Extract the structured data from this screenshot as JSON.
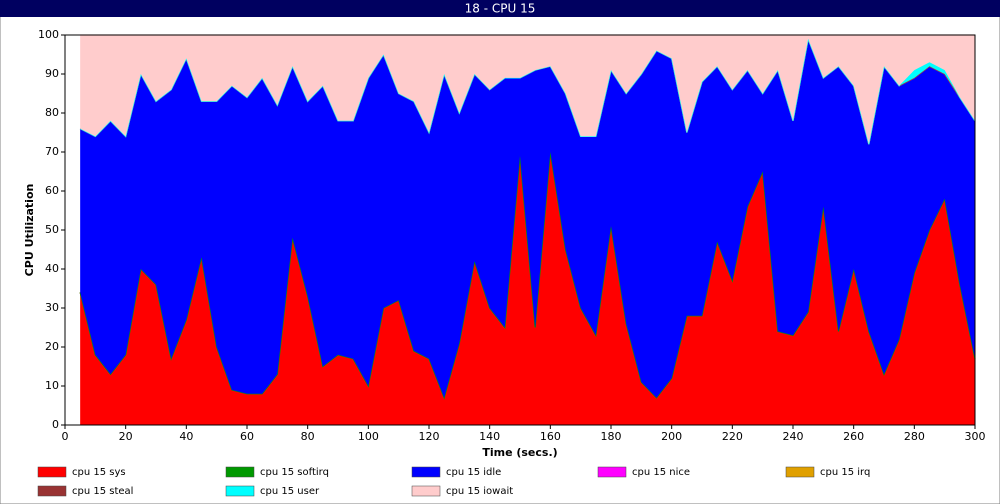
{
  "chart_data": {
    "type": "area",
    "stacked": true,
    "title": "18 - CPU 15",
    "x_label": "Time (secs.)",
    "y_label": "CPU Utilization",
    "xlim": [
      0,
      300
    ],
    "ylim": [
      0,
      100
    ],
    "xticks": [
      0,
      20,
      40,
      60,
      80,
      100,
      120,
      140,
      160,
      180,
      200,
      220,
      240,
      260,
      280,
      300
    ],
    "yticks": [
      0,
      10,
      20,
      30,
      40,
      50,
      60,
      70,
      80,
      90,
      100
    ],
    "x": [
      5,
      10,
      15,
      20,
      25,
      30,
      35,
      40,
      45,
      50,
      55,
      60,
      65,
      70,
      75,
      80,
      85,
      90,
      95,
      100,
      105,
      110,
      115,
      120,
      125,
      130,
      135,
      140,
      145,
      150,
      155,
      160,
      165,
      170,
      175,
      180,
      185,
      190,
      195,
      200,
      205,
      210,
      215,
      220,
      225,
      230,
      235,
      240,
      245,
      250,
      255,
      260,
      265,
      270,
      275,
      280,
      285,
      290,
      295,
      300
    ],
    "series": [
      {
        "name": "cpu 15 sys",
        "color": "#ff0000",
        "values": [
          34,
          18,
          13,
          18,
          40,
          36,
          17,
          27,
          43,
          20,
          9,
          8,
          8,
          13,
          48,
          33,
          15,
          18,
          17,
          10,
          30,
          32,
          19,
          17,
          7,
          21,
          42,
          30,
          25,
          69,
          25,
          70,
          45,
          30,
          23,
          51,
          26,
          11,
          7,
          12,
          28,
          28,
          47,
          37,
          56,
          65,
          24,
          23,
          29,
          56,
          24,
          40,
          24,
          13,
          22,
          39,
          50,
          58,
          36,
          17
        ]
      },
      {
        "name": "cpu 15 softirq",
        "color": "#009900",
        "values": [
          0,
          0,
          0,
          0,
          0,
          0,
          0,
          0,
          0,
          0,
          0,
          0,
          0,
          0,
          0,
          0,
          0,
          0,
          0,
          0,
          0,
          0,
          0,
          0,
          0,
          0,
          0,
          0,
          0,
          0,
          0,
          0,
          0,
          0,
          0,
          0,
          0,
          0,
          0,
          0,
          0,
          0,
          0,
          0,
          0,
          0,
          0,
          0,
          0,
          0,
          0,
          0,
          0,
          0,
          0,
          0,
          0,
          0,
          0,
          0
        ]
      },
      {
        "name": "cpu 15 idle",
        "color": "#0000ff",
        "values": [
          42,
          56,
          65,
          56,
          50,
          47,
          69,
          67,
          40,
          63,
          78,
          76,
          81,
          69,
          44,
          50,
          72,
          60,
          61,
          79,
          65,
          53,
          64,
          58,
          83,
          59,
          48,
          56,
          64,
          20,
          66,
          22,
          40,
          44,
          51,
          40,
          59,
          79,
          89,
          82,
          47,
          60,
          45,
          49,
          35,
          20,
          67,
          55,
          70,
          33,
          68,
          47,
          48,
          79,
          65,
          50,
          42,
          32,
          48,
          61
        ]
      },
      {
        "name": "cpu 15 nice",
        "color": "#ff00ff",
        "values": [
          0,
          0,
          0,
          0,
          0,
          0,
          0,
          0,
          0,
          0,
          0,
          0,
          0,
          0,
          0,
          0,
          0,
          0,
          0,
          0,
          0,
          0,
          0,
          0,
          0,
          0,
          0,
          0,
          0,
          0,
          0,
          0,
          0,
          0,
          0,
          0,
          0,
          0,
          0,
          0,
          0,
          0,
          0,
          0,
          0,
          0,
          0,
          0,
          0,
          0,
          0,
          0,
          0,
          0,
          0,
          0,
          0,
          0,
          0,
          0
        ]
      },
      {
        "name": "cpu 15 irq",
        "color": "#e0a000",
        "values": [
          0,
          0,
          0,
          0,
          0,
          0,
          0,
          0,
          0,
          0,
          0,
          0,
          0,
          0,
          0,
          0,
          0,
          0,
          0,
          0,
          0,
          0,
          0,
          0,
          0,
          0,
          0,
          0,
          0,
          0,
          0,
          0,
          0,
          0,
          0,
          0,
          0,
          0,
          0,
          0,
          0,
          0,
          0,
          0,
          0,
          0,
          0,
          0,
          0,
          0,
          0,
          0,
          0,
          0,
          0,
          0,
          0,
          0,
          0,
          0
        ]
      },
      {
        "name": "cpu 15 steal",
        "color": "#993333",
        "values": [
          0,
          0,
          0,
          0,
          0,
          0,
          0,
          0,
          0,
          0,
          0,
          0,
          0,
          0,
          0,
          0,
          0,
          0,
          0,
          0,
          0,
          0,
          0,
          0,
          0,
          0,
          0,
          0,
          0,
          0,
          0,
          0,
          0,
          0,
          0,
          0,
          0,
          0,
          0,
          0,
          0,
          0,
          0,
          0,
          0,
          0,
          0,
          0,
          0,
          0,
          0,
          0,
          0,
          0,
          0,
          0,
          0,
          0,
          0,
          0
        ]
      },
      {
        "name": "cpu 15 user",
        "color": "#00ffff",
        "values": [
          0,
          0,
          0,
          0,
          0,
          0,
          0,
          0,
          0,
          0,
          0,
          0,
          0,
          0,
          0,
          0,
          0,
          0,
          0,
          0,
          0,
          0,
          0,
          0,
          0,
          0,
          0,
          0,
          0,
          0,
          0,
          0,
          0,
          0,
          0,
          0,
          0,
          0,
          0,
          0,
          0,
          0,
          0,
          0,
          0,
          0,
          0,
          0,
          0,
          0,
          0,
          0,
          0,
          0,
          0,
          2,
          1,
          1,
          0,
          0
        ]
      },
      {
        "name": "cpu 15 iowait",
        "color": "#ffcccc",
        "values": [
          24,
          26,
          22,
          26,
          10,
          17,
          14,
          6,
          17,
          17,
          13,
          16,
          11,
          18,
          8,
          17,
          13,
          22,
          22,
          11,
          5,
          15,
          17,
          25,
          10,
          20,
          10,
          14,
          11,
          11,
          9,
          8,
          15,
          26,
          26,
          9,
          15,
          10,
          4,
          6,
          25,
          12,
          8,
          14,
          9,
          15,
          9,
          22,
          1,
          11,
          8,
          13,
          28,
          8,
          13,
          9,
          7,
          9,
          16,
          22
        ]
      }
    ]
  }
}
